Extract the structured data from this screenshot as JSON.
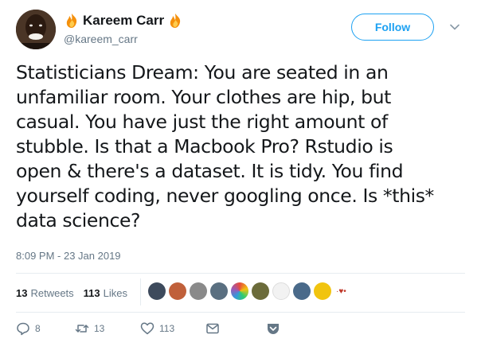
{
  "author": {
    "display_name": "Kareem Carr",
    "handle": "@kareem_carr",
    "avatar_icon": "user-avatar",
    "name_emoji": "fire-icon"
  },
  "follow_button": {
    "label": "Follow"
  },
  "tweet": {
    "lines": [
      "Statisticians Dream: You are seated in an",
      "unfamiliar room. Your clothes are hip, but",
      "casual. You have just the right amount of",
      "stubble. Is that a Macbook Pro? Rstudio is",
      "open & there's a dataset. It is tidy. You find",
      "yourself coding, never googling once. Is *this*",
      "data science?"
    ],
    "timestamp": "8:09 PM - 23 Jan 2019"
  },
  "stats": {
    "retweets_count": "13",
    "retweets_label": "Retweets",
    "likes_count": "113",
    "likes_label": "Likes"
  },
  "actions": {
    "reply_count": "8",
    "retweet_count": "13",
    "like_count": "113"
  },
  "colors": {
    "accent": "#1da1f2",
    "text": "#14171a",
    "muted": "#657786",
    "divider": "#e6ecf0"
  }
}
